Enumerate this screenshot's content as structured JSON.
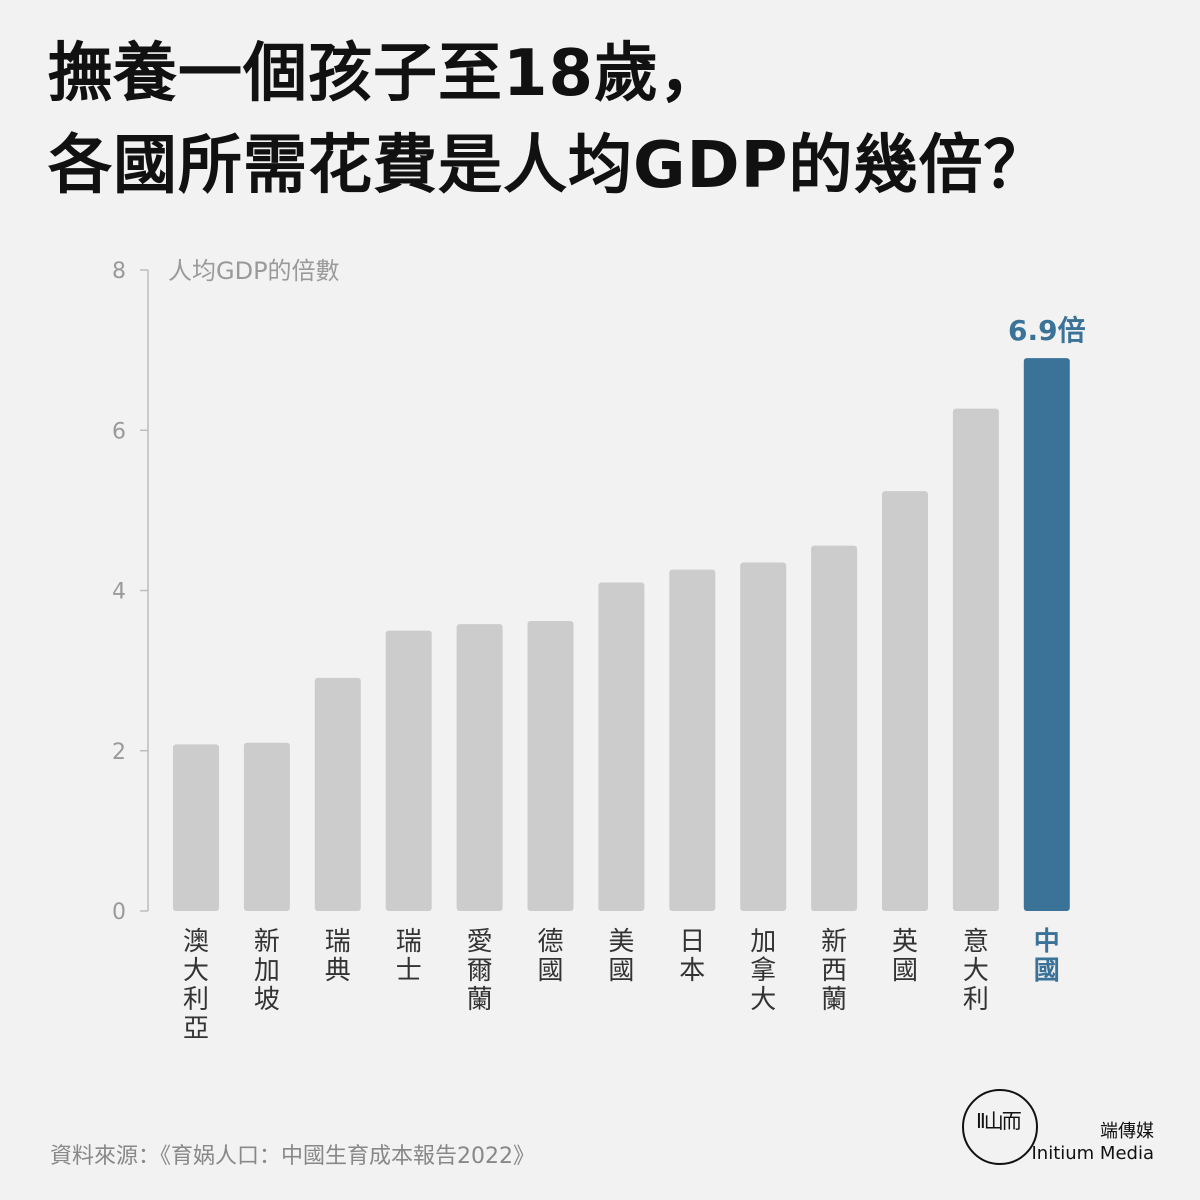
{
  "title_lines": [
    "撫養一個孩子至18歲，",
    "各國所需花費是人均GDP的幾倍？"
  ],
  "chart_data": {
    "type": "bar",
    "title": "撫養一個孩子至18歲，各國所需花費是人均GDP的幾倍？",
    "ylabel": "人均GDP的倍數",
    "xlabel": "",
    "ylim": [
      0,
      8
    ],
    "yticks": [
      0,
      2,
      4,
      6,
      8
    ],
    "categories": [
      "澳大利亞",
      "新加坡",
      "瑞典",
      "瑞士",
      "愛爾蘭",
      "德國",
      "美國",
      "日本",
      "加拿大",
      "新西蘭",
      "英國",
      "意大利",
      "中國"
    ],
    "values": [
      2.08,
      2.1,
      2.91,
      3.5,
      3.58,
      3.62,
      4.1,
      4.26,
      4.35,
      4.56,
      5.24,
      6.27,
      6.9
    ],
    "highlight": {
      "category": "中國",
      "label": "6.9倍",
      "color": "#3a7298"
    },
    "bar_color": "#cccccc",
    "grid": false
  },
  "source": "資料來源：《育娲人口：中國生育成本報告2022》",
  "logo": {
    "mark": "ΙΙ山而",
    "name_zh": "端傳媒",
    "name_en": "Initium Media"
  },
  "colors": {
    "background": "#f2f2f2",
    "highlight": "#3a7298",
    "bar": "#cccccc"
  }
}
